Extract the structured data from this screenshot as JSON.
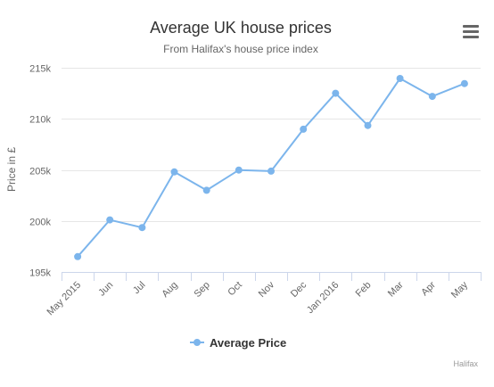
{
  "chart_data": {
    "type": "line",
    "title": "Average UK house prices",
    "subtitle": "From Halifax's house price index",
    "xlabel": "",
    "ylabel": "Price in £",
    "categories": [
      "May 2015",
      "Jun",
      "Jul",
      "Aug",
      "Sep",
      "Oct",
      "Nov",
      "Dec",
      "Jan 2016",
      "Feb",
      "Mar",
      "Apr",
      "May"
    ],
    "series": [
      {
        "name": "Average Price",
        "color": "#7cb5ec",
        "values": [
          196500,
          200100,
          199350,
          204800,
          203000,
          204980,
          204880,
          208980,
          212500,
          209350,
          213950,
          212200,
          213450
        ]
      }
    ],
    "ylim": [
      195000,
      215000
    ],
    "yticks": [
      195000,
      200000,
      205000,
      210000,
      215000
    ],
    "ytick_labels": [
      "195k",
      "200k",
      "205k",
      "210k",
      "215k"
    ],
    "grid": true,
    "legend_position": "bottom-center",
    "credits": "Halifax"
  },
  "menu": {
    "icon": "hamburger-menu-icon"
  }
}
